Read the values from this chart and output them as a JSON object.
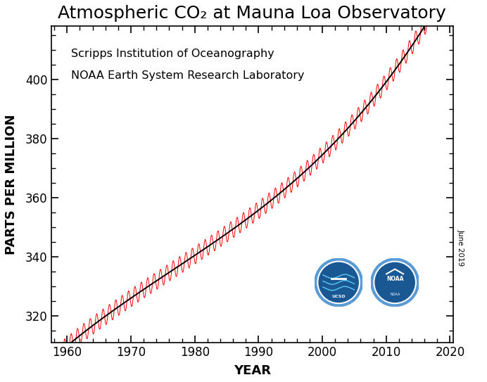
{
  "title": "Atmospheric CO₂ at Mauna Loa Observatory",
  "xlabel": "YEAR",
  "ylabel": "PARTS PER MILLION",
  "annotation_line1": "Scripps Institution of Oceanography",
  "annotation_line2": "NOAA Earth System Research Laboratory",
  "date_label": "June 2019",
  "xlim": [
    1957.5,
    2020.5
  ],
  "ylim": [
    311,
    418
  ],
  "yticks": [
    320,
    340,
    360,
    380,
    400
  ],
  "xticks": [
    1960,
    1970,
    1980,
    1990,
    2000,
    2010,
    2020
  ],
  "trend_color": "#000000",
  "seasonal_color": "#ff0000",
  "background_color": "#ffffff",
  "title_fontsize": 18,
  "axis_label_fontsize": 13,
  "tick_fontsize": 12,
  "annotation_fontsize": 11.5
}
